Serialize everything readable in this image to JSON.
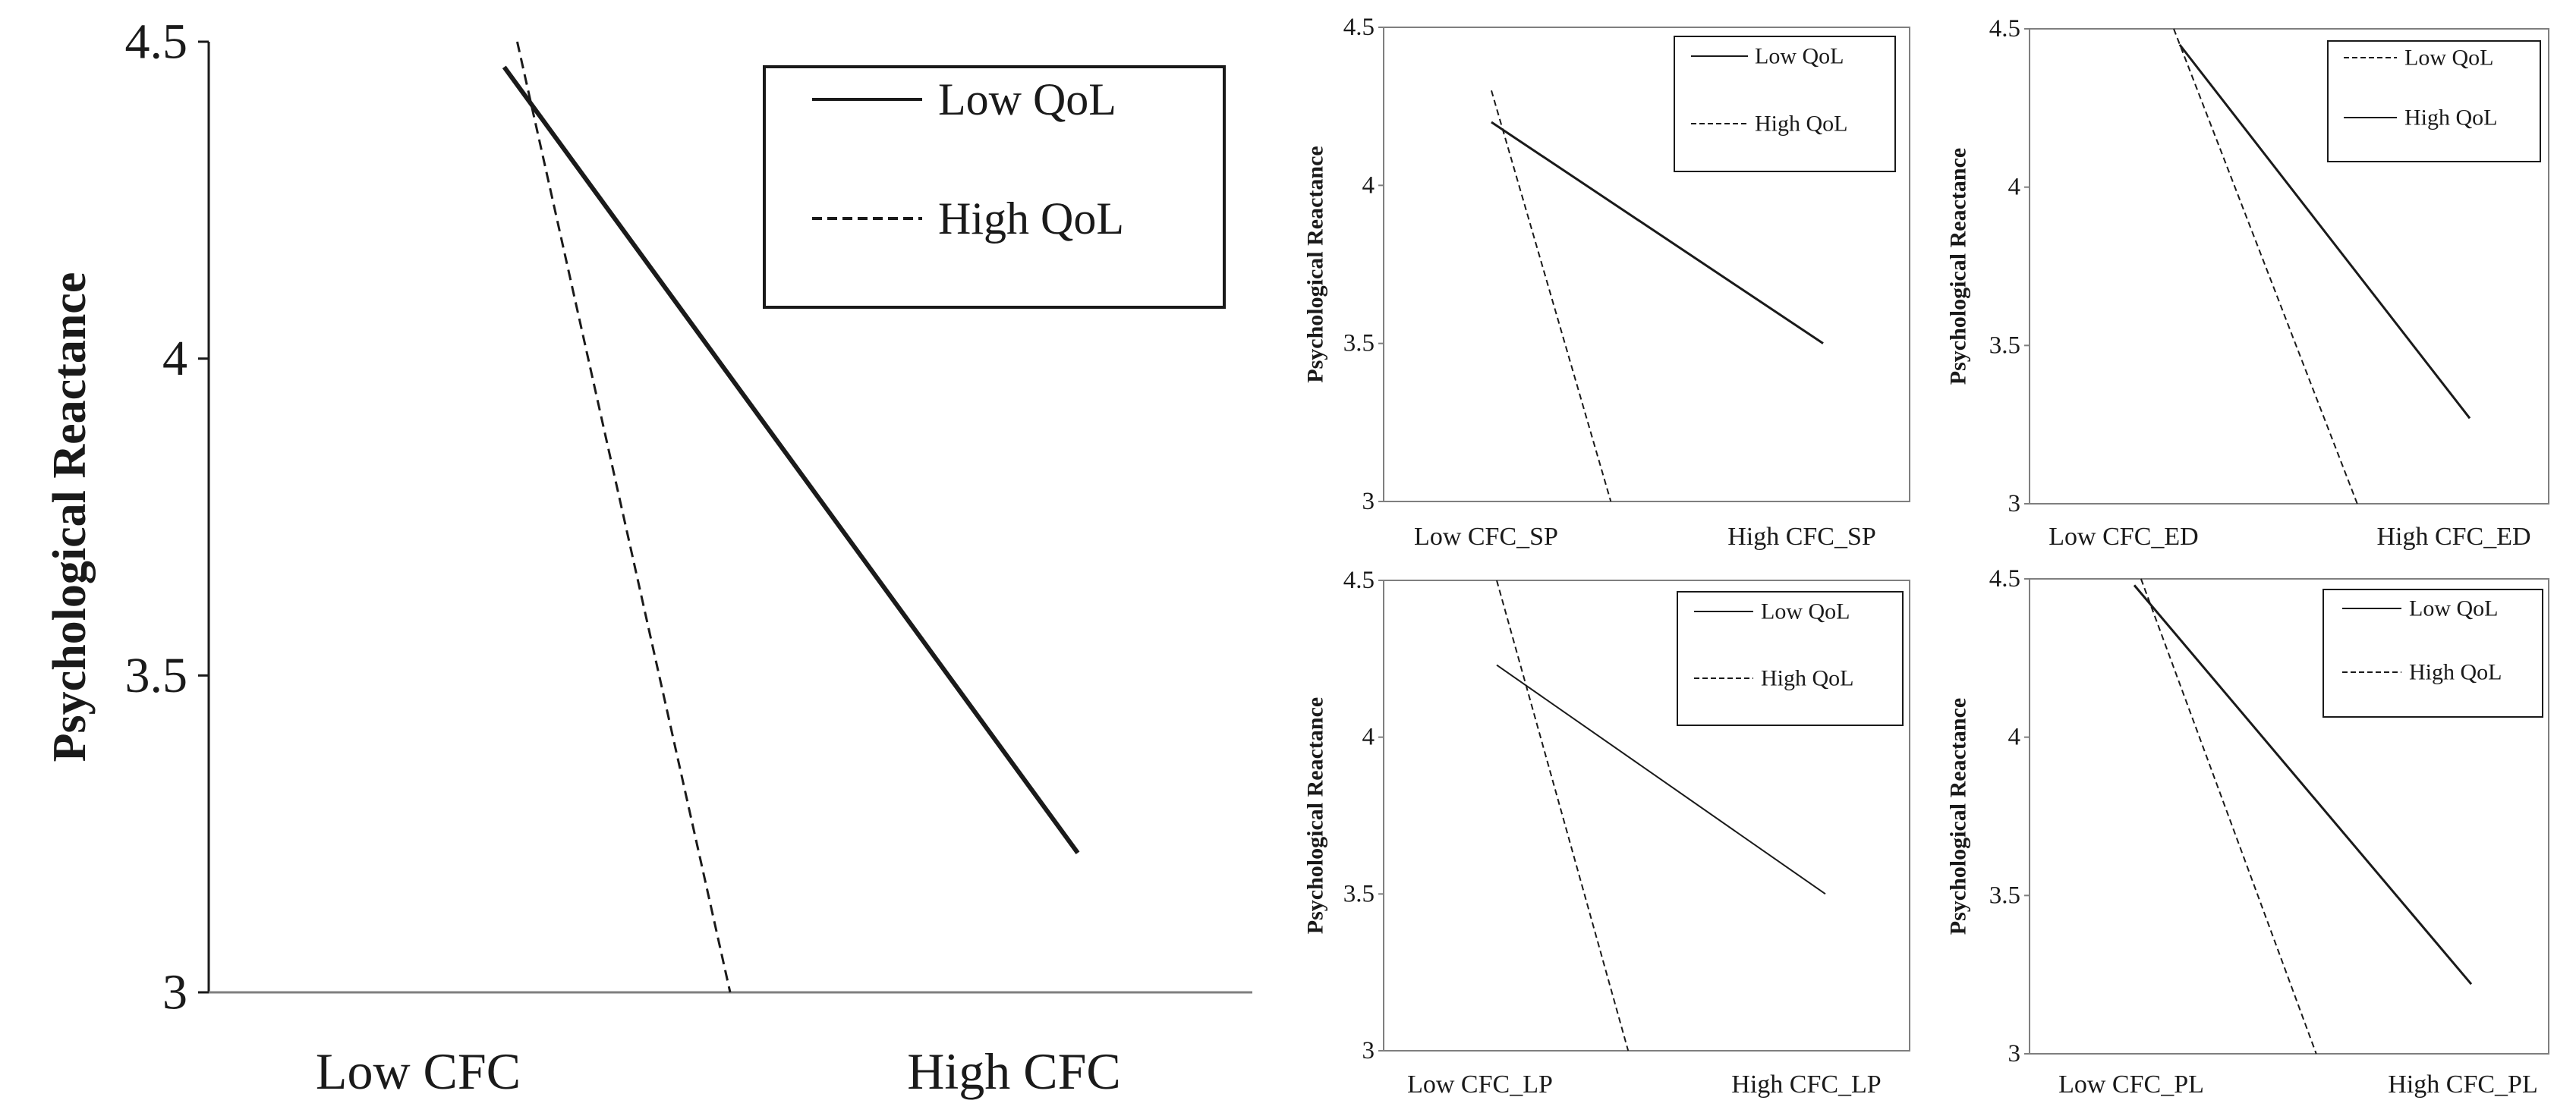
{
  "colors": {
    "ink": "#1a1a1a",
    "frame": "#7f7f7f",
    "thin": "#555555",
    "background": "#ffffff"
  },
  "chart_data": [
    {
      "type": "line",
      "title": "",
      "xlabel": "",
      "ylabel": "Psychological  Reactance",
      "categories": [
        "Low CFC",
        "High CFC"
      ],
      "yticks": [
        "3",
        "3.5",
        "4",
        "4.5"
      ],
      "ylim": [
        3,
        4.5
      ],
      "grid": false,
      "legend_position": "top-right",
      "series": [
        {
          "name": "Low QoL",
          "style": "solid",
          "x": [
            0.34,
            1.0
          ],
          "y": [
            4.46,
            3.22
          ]
        },
        {
          "name": "High QoL",
          "style": "dashed",
          "x": [
            0.355,
            0.6
          ],
          "y": [
            4.5,
            3.0
          ]
        }
      ]
    },
    {
      "type": "line",
      "title": "",
      "xlabel": "",
      "ylabel": "Psychological  Reactance",
      "categories": [
        "Low CFC_SP",
        "High CFC_SP"
      ],
      "yticks": [
        "3",
        "3.5",
        "4",
        "4.5"
      ],
      "ylim": [
        3,
        4.5
      ],
      "grid": false,
      "legend_position": "top-right",
      "series": [
        {
          "name": "Low QoL",
          "style": "solid",
          "x": [
            0.0,
            1.0
          ],
          "y": [
            4.2,
            3.5
          ]
        },
        {
          "name": "High QoL",
          "style": "dashed",
          "x": [
            0.0,
            0.36
          ],
          "y": [
            4.3,
            3.0
          ]
        }
      ]
    },
    {
      "type": "line",
      "title": "",
      "xlabel": "",
      "ylabel": "Psychological  Reactance",
      "categories": [
        "Low CFC_ED",
        "High CFC_ED"
      ],
      "yticks": [
        "3",
        "3.5",
        "4",
        "4.5"
      ],
      "ylim": [
        3,
        4.5
      ],
      "grid": false,
      "legend_position": "top-right",
      "series": [
        {
          "name": "Low QoL",
          "style": "dashed",
          "x": [
            0.0,
            0.62
          ],
          "y": [
            4.5,
            3.0
          ]
        },
        {
          "name": "High QoL",
          "style": "solid",
          "x": [
            0.02,
            1.0
          ],
          "y": [
            4.45,
            3.27
          ]
        }
      ]
    },
    {
      "type": "line",
      "title": "",
      "xlabel": "",
      "ylabel": "Psychological  Reactance",
      "categories": [
        "Low CFC_LP",
        "High CFC_LP"
      ],
      "yticks": [
        "3",
        "3.5",
        "4",
        "4.5"
      ],
      "ylim": [
        3,
        4.5
      ],
      "grid": false,
      "legend_position": "top-right",
      "series": [
        {
          "name": "Low QoL",
          "style": "solid",
          "x": [
            0.0,
            1.0
          ],
          "y": [
            4.23,
            3.5
          ]
        },
        {
          "name": "High QoL",
          "style": "dashed",
          "x": [
            0.0,
            0.4
          ],
          "y": [
            4.5,
            3.0
          ]
        }
      ]
    },
    {
      "type": "line",
      "title": "",
      "xlabel": "",
      "ylabel": "Psychological  Reactance",
      "categories": [
        "Low CFC_PL",
        "High CFC_PL"
      ],
      "yticks": [
        "3",
        "3.5",
        "4",
        "4.5"
      ],
      "ylim": [
        3,
        4.5
      ],
      "grid": false,
      "legend_position": "top-right",
      "series": [
        {
          "name": "Low QoL",
          "style": "solid",
          "x": [
            0.0,
            1.0
          ],
          "y": [
            4.48,
            3.22
          ]
        },
        {
          "name": "High QoL",
          "style": "dashed",
          "x": [
            0.02,
            0.54
          ],
          "y": [
            4.5,
            3.0
          ]
        }
      ]
    }
  ]
}
